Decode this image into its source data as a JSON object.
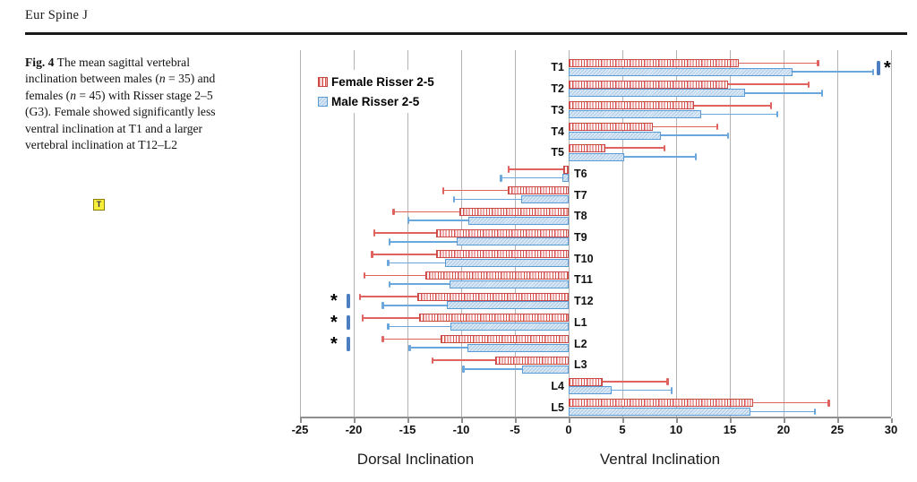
{
  "page": {
    "journal": "Eur Spine J"
  },
  "caption": {
    "marker": "T",
    "segments": [
      {
        "text": "Fig. 4",
        "b": 1
      },
      {
        "text": "  The mean sagittal vertebral inclination between males ("
      },
      {
        "text": "n",
        "i": 1
      },
      {
        "text": " = 35) and females ("
      },
      {
        "text": "n",
        "i": 1
      },
      {
        "text": " = 45) with Risser stage 2–5 (G3). Female showed significantly less ventral inclination at T1 and a larger vertebral inclination at T12–L2"
      }
    ]
  },
  "chart_data": {
    "type": "bar",
    "orientation": "horizontal",
    "title": "",
    "xlabel_left": "Dorsal Inclination",
    "xlabel_right": "Ventral Inclination",
    "xlim": [
      -25,
      30
    ],
    "xticks": [
      -25,
      -20,
      -15,
      -10,
      -5,
      0,
      5,
      10,
      15,
      20,
      25,
      30
    ],
    "grid": true,
    "legend_position": "top-left",
    "sig_symbol": "*",
    "categories": [
      "T1",
      "T2",
      "T3",
      "T4",
      "T5",
      "T6",
      "T7",
      "T8",
      "T9",
      "T10",
      "T11",
      "T12",
      "L1",
      "L2",
      "L3",
      "L4",
      "L5"
    ],
    "series": [
      {
        "name": "Female Risser 2-5",
        "color": "#d9534f",
        "values": [
          15.8,
          14.8,
          11.7,
          7.8,
          3.4,
          -0.5,
          -5.7,
          -10.2,
          -12.3,
          -12.3,
          -13.3,
          -14.1,
          -13.9,
          -11.9,
          -6.8,
          3.2,
          17.2
        ],
        "errors": [
          7.4,
          7.5,
          7.1,
          6.0,
          5.5,
          5.1,
          6.0,
          6.1,
          5.8,
          6.0,
          5.7,
          5.3,
          5.3,
          5.4,
          5.9,
          6.0,
          7.0
        ]
      },
      {
        "name": "Male Risser 2-5",
        "color": "#5b9bd5",
        "values": [
          20.8,
          16.4,
          12.3,
          8.6,
          5.2,
          -0.6,
          -4.4,
          -9.3,
          -10.4,
          -11.5,
          -11.1,
          -11.3,
          -11.0,
          -9.4,
          -4.3,
          4.0,
          16.9
        ],
        "errors": [
          7.5,
          7.2,
          7.1,
          6.2,
          6.6,
          5.7,
          6.3,
          5.6,
          6.3,
          5.3,
          5.6,
          6.0,
          5.8,
          5.4,
          5.5,
          5.6,
          6.0
        ]
      }
    ],
    "significance": [
      {
        "category": "T1",
        "side": "right"
      },
      {
        "category": "T12",
        "side": "left"
      },
      {
        "category": "L1",
        "side": "left"
      },
      {
        "category": "L2",
        "side": "left"
      }
    ]
  }
}
